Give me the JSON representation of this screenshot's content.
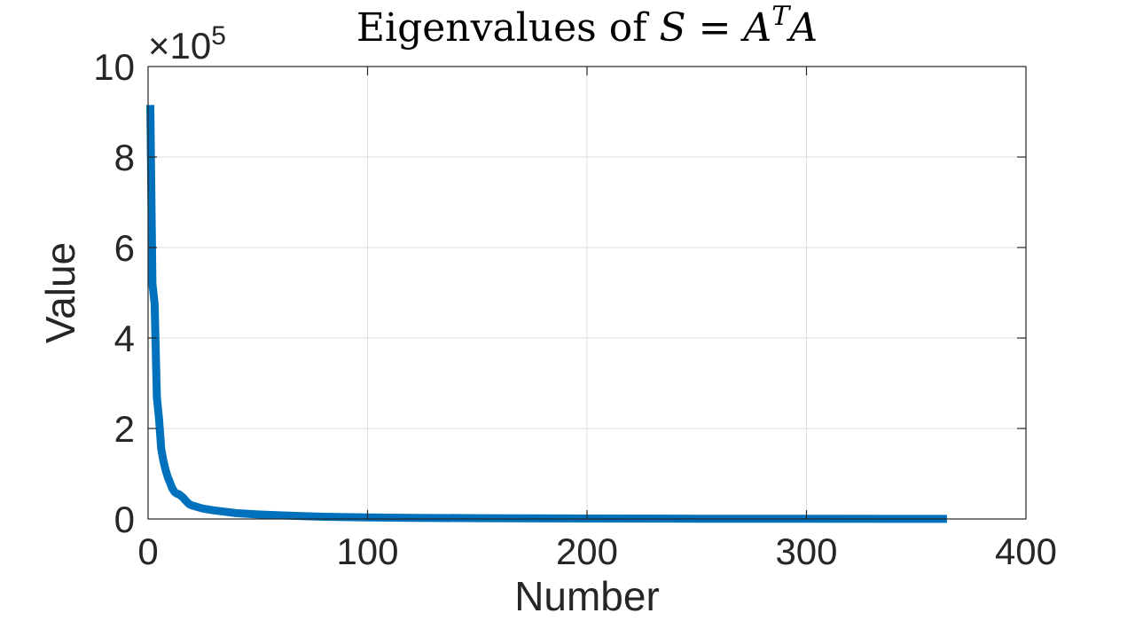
{
  "chart_data": {
    "type": "line",
    "title": {
      "text": "Eigenvalues of ",
      "math_lhs": "S",
      "math_eq": " = ",
      "math_base1": "A",
      "math_sup": "T",
      "math_base2": "A"
    },
    "xlabel": "Number",
    "ylabel": "Value",
    "xlim": [
      0,
      400
    ],
    "ylim": [
      0,
      1000000
    ],
    "x_ticks": [
      0,
      100,
      200,
      300,
      400
    ],
    "x_tick_labels": [
      "0",
      "100",
      "200",
      "300",
      "400"
    ],
    "y_ticks": [
      0,
      200000,
      400000,
      600000,
      800000,
      1000000
    ],
    "y_tick_labels": [
      "0",
      "2",
      "4",
      "6",
      "8",
      "10"
    ],
    "y_multiplier": {
      "prefix": "×10",
      "exponent": "5"
    },
    "grid": true,
    "series": [
      {
        "color": "#0072BD",
        "x": [
          1,
          2,
          3,
          4,
          5,
          6,
          7,
          8,
          9,
          10,
          11,
          12,
          13,
          14,
          15,
          16,
          17,
          18,
          19,
          20,
          22,
          25,
          30,
          35,
          40,
          50,
          60,
          70,
          80,
          100,
          120,
          150,
          200,
          250,
          300,
          364
        ],
        "y": [
          915000,
          520000,
          475000,
          270000,
          220000,
          155000,
          128000,
          108000,
          92000,
          80000,
          68000,
          60000,
          56000,
          55000,
          51000,
          47000,
          41000,
          36000,
          32000,
          30000,
          27000,
          23000,
          19000,
          16000,
          13000,
          10000,
          8000,
          6500,
          5000,
          3500,
          2500,
          1800,
          900,
          600,
          400,
          200
        ]
      }
    ]
  }
}
